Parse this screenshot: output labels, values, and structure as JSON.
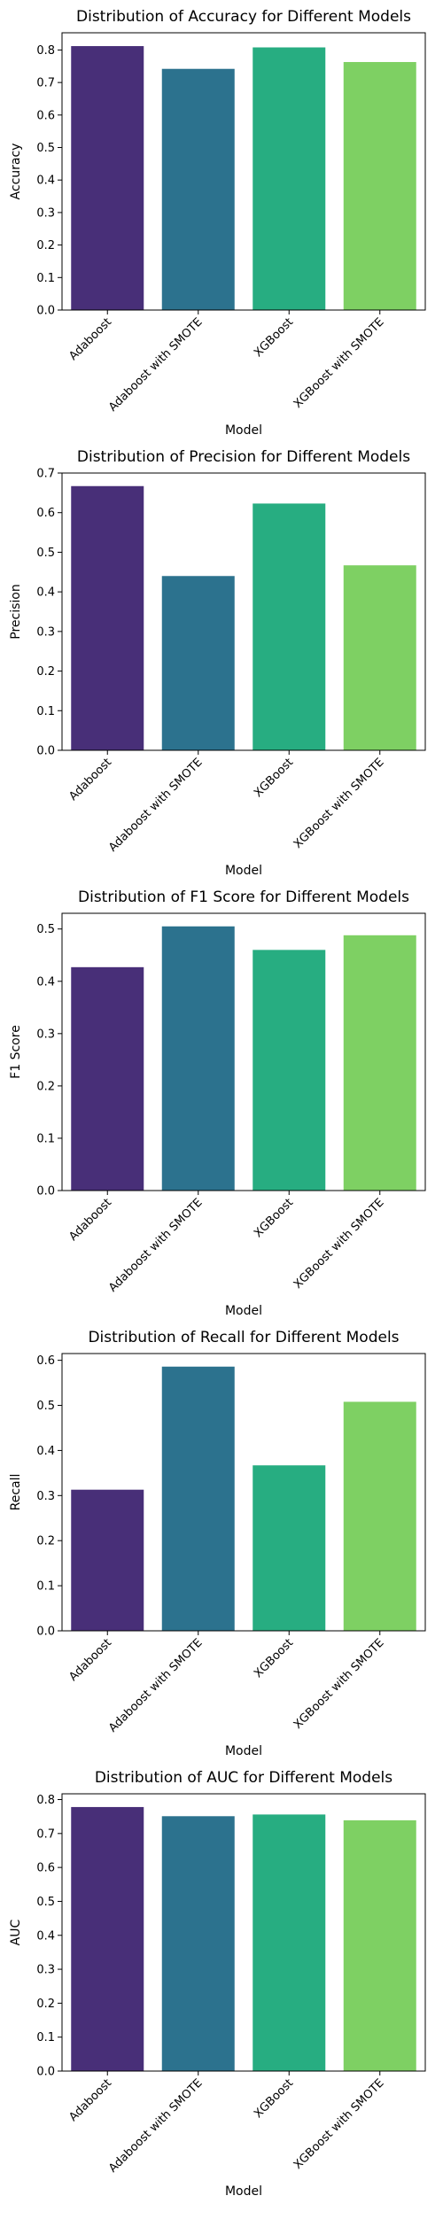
{
  "colors": {
    "Adaboost": "#482F78",
    "Adaboost with SMOTE": "#2C728E",
    "XGBoost": "#27AD81",
    "XGBoost with SMOTE": "#7ED063"
  },
  "chart_data": [
    {
      "type": "bar",
      "title": "Distribution of Accuracy for Different Models",
      "xlabel": "Model",
      "ylabel": "Accuracy",
      "categories": [
        "Adaboost",
        "Adaboost with SMOTE",
        "XGBoost",
        "XGBoost with SMOTE"
      ],
      "values": [
        0.812,
        0.742,
        0.808,
        0.763
      ],
      "ylim": [
        0,
        0.853
      ],
      "yticks": [
        "0.0",
        "0.1",
        "0.2",
        "0.3",
        "0.4",
        "0.5",
        "0.6",
        "0.7",
        "0.8"
      ],
      "grid": false,
      "legend": "none"
    },
    {
      "type": "bar",
      "title": "Distribution of Precision for Different Models",
      "xlabel": "Model",
      "ylabel": "Precision",
      "categories": [
        "Adaboost",
        "Adaboost with SMOTE",
        "XGBoost",
        "XGBoost with SMOTE"
      ],
      "values": [
        0.667,
        0.44,
        0.623,
        0.467
      ],
      "ylim": [
        0,
        0.7
      ],
      "yticks": [
        "0.0",
        "0.1",
        "0.2",
        "0.3",
        "0.4",
        "0.5",
        "0.6",
        "0.7"
      ],
      "grid": false,
      "legend": "none"
    },
    {
      "type": "bar",
      "title": "Distribution of F1 Score for Different Models",
      "xlabel": "Model",
      "ylabel": "F1 Score",
      "categories": [
        "Adaboost",
        "Adaboost with SMOTE",
        "XGBoost",
        "XGBoost with SMOTE"
      ],
      "values": [
        0.427,
        0.505,
        0.46,
        0.488
      ],
      "ylim": [
        0,
        0.53
      ],
      "yticks": [
        "0.0",
        "0.1",
        "0.2",
        "0.3",
        "0.4",
        "0.5"
      ],
      "grid": false,
      "legend": "none"
    },
    {
      "type": "bar",
      "title": "Distribution of Recall for Different Models",
      "xlabel": "Model",
      "ylabel": "Recall",
      "categories": [
        "Adaboost",
        "Adaboost with SMOTE",
        "XGBoost",
        "XGBoost with SMOTE"
      ],
      "values": [
        0.313,
        0.586,
        0.367,
        0.508
      ],
      "ylim": [
        0,
        0.615
      ],
      "yticks": [
        "0.0",
        "0.1",
        "0.2",
        "0.3",
        "0.4",
        "0.5",
        "0.6"
      ],
      "grid": false,
      "legend": "none"
    },
    {
      "type": "bar",
      "title": "Distribution of AUC for Different Models",
      "xlabel": "Model",
      "ylabel": "AUC",
      "categories": [
        "Adaboost",
        "Adaboost with SMOTE",
        "XGBoost",
        "XGBoost with SMOTE"
      ],
      "values": [
        0.778,
        0.751,
        0.756,
        0.739
      ],
      "ylim": [
        0,
        0.817
      ],
      "yticks": [
        "0.0",
        "0.1",
        "0.2",
        "0.3",
        "0.4",
        "0.5",
        "0.6",
        "0.7",
        "0.8"
      ],
      "grid": false,
      "legend": "none"
    }
  ]
}
